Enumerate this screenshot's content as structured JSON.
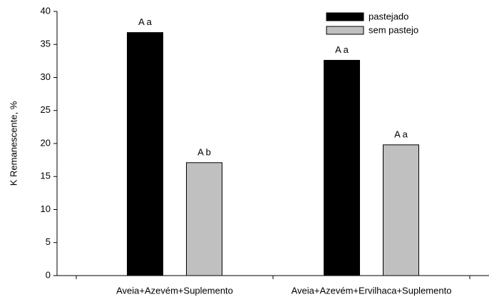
{
  "chart_data": {
    "type": "bar",
    "y_label": "K Remanescente, %",
    "categories": [
      "Aveia+Azevém+Suplemento",
      "Aveia+Azevém+Ervilhaca+Suplemento"
    ],
    "series": [
      {
        "name": "pastejado",
        "color": "#000000",
        "values": [
          36.8,
          32.6
        ],
        "annotations": [
          "A a",
          "A a"
        ]
      },
      {
        "name": "sem pastejo",
        "color": "#c0c0c0",
        "values": [
          17.1,
          19.8
        ],
        "annotations": [
          "A b",
          "A a"
        ]
      }
    ],
    "ylim": [
      0,
      40
    ],
    "yticks": [
      0,
      5,
      10,
      15,
      20,
      25,
      30,
      35,
      40
    ],
    "grid": false,
    "legend": "top-right"
  }
}
